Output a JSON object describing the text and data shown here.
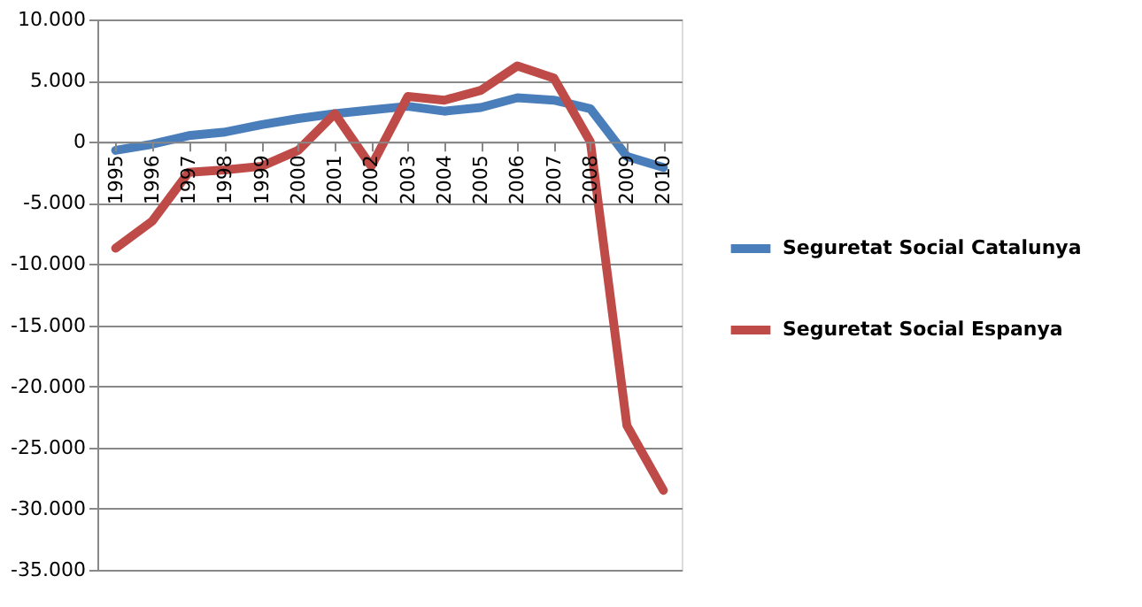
{
  "chart_data": {
    "type": "line",
    "categories": [
      "1995",
      "1996",
      "1997",
      "1998",
      "1999",
      "2000",
      "2001",
      "2002",
      "2003",
      "2004",
      "2005",
      "2006",
      "2007",
      "2008",
      "2009",
      "2010"
    ],
    "series": [
      {
        "name": "Seguretat Social Catalunya",
        "color": "#4a7ebb",
        "values": [
          -700,
          -200,
          500,
          800,
          1400,
          1900,
          2300,
          2600,
          2900,
          2500,
          2800,
          3600,
          3400,
          2700,
          -1200,
          -2100
        ]
      },
      {
        "name": "Seguretat Social Espanya",
        "color": "#be4b48",
        "values": [
          -8700,
          -6500,
          -2500,
          -2300,
          -2000,
          -700,
          2300,
          -2000,
          3700,
          3400,
          4200,
          6200,
          5200,
          0,
          -23200,
          -28500
        ]
      }
    ],
    "ylim": [
      -35000,
      10000
    ],
    "yticks": [
      {
        "value": -35000,
        "label": "-35.000"
      },
      {
        "value": -30000,
        "label": "-30.000"
      },
      {
        "value": -25000,
        "label": "-25.000"
      },
      {
        "value": -20000,
        "label": "-20.000"
      },
      {
        "value": -15000,
        "label": "-15.000"
      },
      {
        "value": -10000,
        "label": "-10.000"
      },
      {
        "value": -5000,
        "label": "-5.000"
      },
      {
        "value": 0,
        "label": "0"
      },
      {
        "value": 5000,
        "label": "5.000"
      },
      {
        "value": 10000,
        "label": "10.000"
      }
    ],
    "grid": "y",
    "legend": "right",
    "marker": "none",
    "line_style": "solid"
  }
}
